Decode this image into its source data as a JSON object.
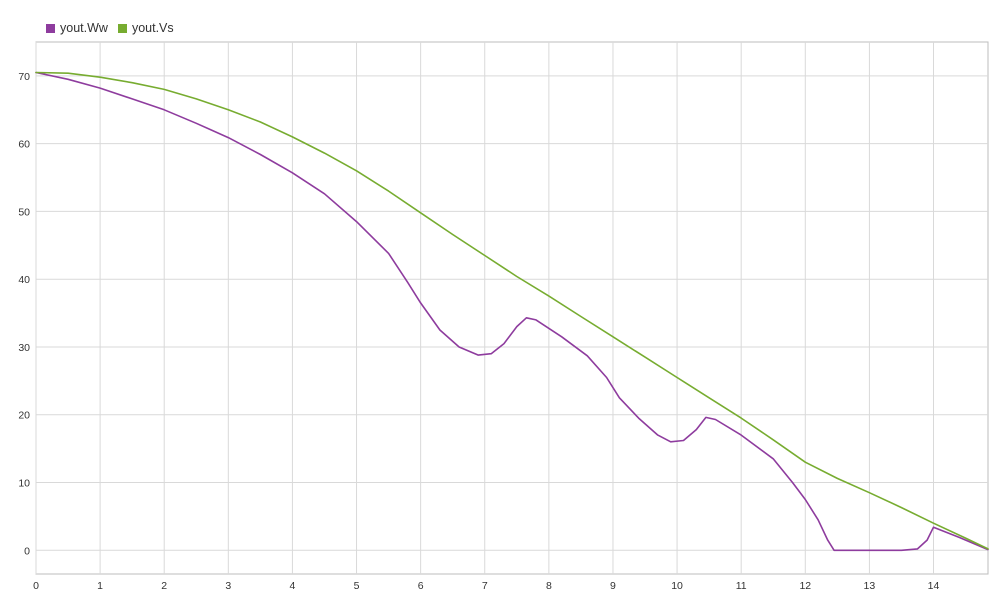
{
  "legend": {
    "items": [
      {
        "label": "yout.Ww",
        "color": "#8e3c9e"
      },
      {
        "label": "yout.Vs",
        "color": "#77ac30"
      }
    ]
  },
  "chart_data": {
    "type": "line",
    "title": "",
    "xlabel": "",
    "ylabel": "",
    "xlim": [
      0,
      14.85
    ],
    "ylim": [
      -3.5,
      75
    ],
    "x_ticks": [
      0,
      1,
      2,
      3,
      4,
      5,
      6,
      7,
      8,
      9,
      10,
      11,
      12,
      13,
      14
    ],
    "y_ticks": [
      0,
      10,
      20,
      30,
      40,
      50,
      60,
      70
    ],
    "grid": true,
    "legend_position": "top-left",
    "series": [
      {
        "name": "yout.Ww",
        "color": "#8e3c9e",
        "points": [
          [
            0,
            70.5
          ],
          [
            0.5,
            69.5
          ],
          [
            1,
            68.2
          ],
          [
            1.5,
            66.6
          ],
          [
            2,
            65.0
          ],
          [
            2.5,
            63.0
          ],
          [
            3,
            60.9
          ],
          [
            3.5,
            58.4
          ],
          [
            4,
            55.7
          ],
          [
            4.5,
            52.6
          ],
          [
            5,
            48.5
          ],
          [
            5.5,
            43.8
          ],
          [
            5.8,
            39.5
          ],
          [
            6,
            36.5
          ],
          [
            6.3,
            32.5
          ],
          [
            6.6,
            30.0
          ],
          [
            6.9,
            28.8
          ],
          [
            7.1,
            29.0
          ],
          [
            7.3,
            30.5
          ],
          [
            7.5,
            33.0
          ],
          [
            7.65,
            34.3
          ],
          [
            7.8,
            34.0
          ],
          [
            8.2,
            31.5
          ],
          [
            8.6,
            28.7
          ],
          [
            8.9,
            25.5
          ],
          [
            9.1,
            22.5
          ],
          [
            9.4,
            19.5
          ],
          [
            9.7,
            17.0
          ],
          [
            9.9,
            16.0
          ],
          [
            10.1,
            16.2
          ],
          [
            10.3,
            17.8
          ],
          [
            10.45,
            19.6
          ],
          [
            10.6,
            19.3
          ],
          [
            11,
            17.0
          ],
          [
            11.5,
            13.5
          ],
          [
            11.8,
            10.0
          ],
          [
            12,
            7.5
          ],
          [
            12.2,
            4.5
          ],
          [
            12.35,
            1.5
          ],
          [
            12.45,
            0.0
          ],
          [
            13,
            0.0
          ],
          [
            13.5,
            0.0
          ],
          [
            13.75,
            0.2
          ],
          [
            13.9,
            1.5
          ],
          [
            14.0,
            3.4
          ],
          [
            14.4,
            1.9
          ],
          [
            14.85,
            0.1
          ]
        ]
      },
      {
        "name": "yout.Vs",
        "color": "#77ac30",
        "points": [
          [
            0,
            70.5
          ],
          [
            0.5,
            70.4
          ],
          [
            1,
            69.8
          ],
          [
            1.5,
            69.0
          ],
          [
            2,
            68.0
          ],
          [
            2.5,
            66.6
          ],
          [
            3,
            65.0
          ],
          [
            3.5,
            63.2
          ],
          [
            4,
            61.0
          ],
          [
            4.5,
            58.6
          ],
          [
            5,
            56.0
          ],
          [
            5.5,
            53.0
          ],
          [
            6,
            49.8
          ],
          [
            6.5,
            46.6
          ],
          [
            7,
            43.5
          ],
          [
            7.5,
            40.4
          ],
          [
            8,
            37.5
          ],
          [
            8.5,
            34.5
          ],
          [
            9,
            31.5
          ],
          [
            9.5,
            28.5
          ],
          [
            10,
            25.5
          ],
          [
            10.5,
            22.5
          ],
          [
            11,
            19.5
          ],
          [
            11.5,
            16.3
          ],
          [
            12,
            13.0
          ],
          [
            12.5,
            10.6
          ],
          [
            13,
            8.5
          ],
          [
            13.5,
            6.3
          ],
          [
            14,
            4.0
          ],
          [
            14.5,
            1.8
          ],
          [
            14.85,
            0.2
          ]
        ]
      }
    ]
  }
}
